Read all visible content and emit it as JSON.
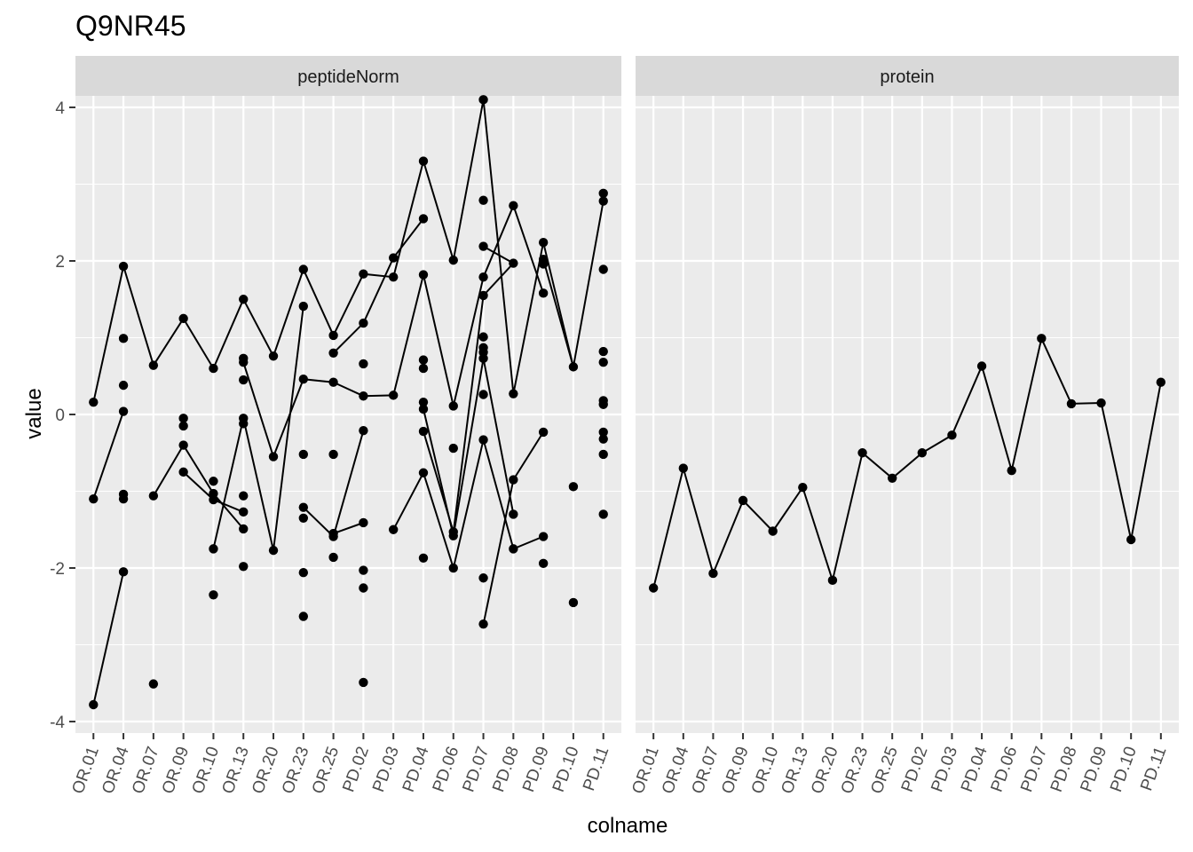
{
  "chart_data": {
    "type": "line",
    "title": "Q9NR45",
    "xlabel": "colname",
    "ylabel": "value",
    "ylim": [
      -4.15,
      4.15
    ],
    "yticks": [
      -4,
      -2,
      0,
      2,
      4
    ],
    "grid": true,
    "categories": [
      "OR.01",
      "OR.04",
      "OR.07",
      "OR.09",
      "OR.10",
      "OR.13",
      "OR.20",
      "OR.23",
      "OR.25",
      "PD.02",
      "PD.03",
      "PD.04",
      "PD.06",
      "PD.07",
      "PD.08",
      "PD.09",
      "PD.10",
      "PD.11"
    ],
    "facets": [
      {
        "name": "peptideNorm",
        "points": [
          {
            "x": "OR.01",
            "y": 0.16
          },
          {
            "x": "OR.01",
            "y": -1.1
          },
          {
            "x": "OR.01",
            "y": -3.78
          },
          {
            "x": "OR.04",
            "y": 1.93
          },
          {
            "x": "OR.04",
            "y": 0.99
          },
          {
            "x": "OR.04",
            "y": 0.38
          },
          {
            "x": "OR.04",
            "y": 0.04
          },
          {
            "x": "OR.04",
            "y": -1.04
          },
          {
            "x": "OR.04",
            "y": -1.1
          },
          {
            "x": "OR.04",
            "y": -2.05
          },
          {
            "x": "OR.07",
            "y": 0.64
          },
          {
            "x": "OR.07",
            "y": -1.06
          },
          {
            "x": "OR.07",
            "y": -3.51
          },
          {
            "x": "OR.09",
            "y": 1.25
          },
          {
            "x": "OR.09",
            "y": -0.05
          },
          {
            "x": "OR.09",
            "y": -0.15
          },
          {
            "x": "OR.09",
            "y": -0.4
          },
          {
            "x": "OR.09",
            "y": -0.75
          },
          {
            "x": "OR.10",
            "y": 0.6
          },
          {
            "x": "OR.10",
            "y": -0.87
          },
          {
            "x": "OR.10",
            "y": -1.03
          },
          {
            "x": "OR.10",
            "y": -1.11
          },
          {
            "x": "OR.10",
            "y": -1.75
          },
          {
            "x": "OR.10",
            "y": -2.35
          },
          {
            "x": "OR.13",
            "y": 1.5
          },
          {
            "x": "OR.13",
            "y": 0.73
          },
          {
            "x": "OR.13",
            "y": 0.68
          },
          {
            "x": "OR.13",
            "y": 0.45
          },
          {
            "x": "OR.13",
            "y": -0.05
          },
          {
            "x": "OR.13",
            "y": -0.12
          },
          {
            "x": "OR.13",
            "y": -1.06
          },
          {
            "x": "OR.13",
            "y": -1.27
          },
          {
            "x": "OR.13",
            "y": -1.49
          },
          {
            "x": "OR.13",
            "y": -1.98
          },
          {
            "x": "OR.20",
            "y": 0.76
          },
          {
            "x": "OR.20",
            "y": -0.55
          },
          {
            "x": "OR.20",
            "y": -1.77
          },
          {
            "x": "OR.23",
            "y": 1.89
          },
          {
            "x": "OR.23",
            "y": 1.41
          },
          {
            "x": "OR.23",
            "y": 0.46
          },
          {
            "x": "OR.23",
            "y": -0.52
          },
          {
            "x": "OR.23",
            "y": -1.21
          },
          {
            "x": "OR.23",
            "y": -1.35
          },
          {
            "x": "OR.23",
            "y": -2.06
          },
          {
            "x": "OR.23",
            "y": -2.63
          },
          {
            "x": "OR.25",
            "y": 1.03
          },
          {
            "x": "OR.25",
            "y": 0.8
          },
          {
            "x": "OR.25",
            "y": 0.42
          },
          {
            "x": "OR.25",
            "y": -0.52
          },
          {
            "x": "OR.25",
            "y": -1.55
          },
          {
            "x": "OR.25",
            "y": -1.59
          },
          {
            "x": "OR.25",
            "y": -1.86
          },
          {
            "x": "PD.02",
            "y": 1.83
          },
          {
            "x": "PD.02",
            "y": 1.19
          },
          {
            "x": "PD.02",
            "y": 0.66
          },
          {
            "x": "PD.02",
            "y": 0.24
          },
          {
            "x": "PD.02",
            "y": -0.21
          },
          {
            "x": "PD.02",
            "y": -1.41
          },
          {
            "x": "PD.02",
            "y": -2.03
          },
          {
            "x": "PD.02",
            "y": -2.26
          },
          {
            "x": "PD.02",
            "y": -3.49
          },
          {
            "x": "PD.03",
            "y": 2.04
          },
          {
            "x": "PD.03",
            "y": 1.79
          },
          {
            "x": "PD.03",
            "y": 0.25
          },
          {
            "x": "PD.03",
            "y": -1.5
          },
          {
            "x": "PD.04",
            "y": 3.3
          },
          {
            "x": "PD.04",
            "y": 2.55
          },
          {
            "x": "PD.04",
            "y": 1.82
          },
          {
            "x": "PD.04",
            "y": 0.71
          },
          {
            "x": "PD.04",
            "y": 0.6
          },
          {
            "x": "PD.04",
            "y": 0.16
          },
          {
            "x": "PD.04",
            "y": 0.07
          },
          {
            "x": "PD.04",
            "y": -0.22
          },
          {
            "x": "PD.04",
            "y": -0.76
          },
          {
            "x": "PD.04",
            "y": -1.87
          },
          {
            "x": "PD.06",
            "y": 2.01
          },
          {
            "x": "PD.06",
            "y": 0.11
          },
          {
            "x": "PD.06",
            "y": -0.44
          },
          {
            "x": "PD.06",
            "y": -1.53
          },
          {
            "x": "PD.06",
            "y": -1.58
          },
          {
            "x": "PD.06",
            "y": -2.0
          },
          {
            "x": "PD.07",
            "y": 4.1
          },
          {
            "x": "PD.07",
            "y": 2.79
          },
          {
            "x": "PD.07",
            "y": 2.19
          },
          {
            "x": "PD.07",
            "y": 1.79
          },
          {
            "x": "PD.07",
            "y": 1.55
          },
          {
            "x": "PD.07",
            "y": 1.01
          },
          {
            "x": "PD.07",
            "y": 0.87
          },
          {
            "x": "PD.07",
            "y": 0.81
          },
          {
            "x": "PD.07",
            "y": 0.73
          },
          {
            "x": "PD.07",
            "y": 0.26
          },
          {
            "x": "PD.07",
            "y": -0.33
          },
          {
            "x": "PD.07",
            "y": -2.13
          },
          {
            "x": "PD.07",
            "y": -2.73
          },
          {
            "x": "PD.08",
            "y": 2.72
          },
          {
            "x": "PD.08",
            "y": 1.97
          },
          {
            "x": "PD.08",
            "y": 0.27
          },
          {
            "x": "PD.08",
            "y": -0.85
          },
          {
            "x": "PD.08",
            "y": -1.3
          },
          {
            "x": "PD.08",
            "y": -1.75
          },
          {
            "x": "PD.09",
            "y": 2.24
          },
          {
            "x": "PD.09",
            "y": 2.02
          },
          {
            "x": "PD.09",
            "y": 1.96
          },
          {
            "x": "PD.09",
            "y": 1.58
          },
          {
            "x": "PD.09",
            "y": -0.23
          },
          {
            "x": "PD.09",
            "y": -1.59
          },
          {
            "x": "PD.09",
            "y": -1.94
          },
          {
            "x": "PD.10",
            "y": 0.62
          },
          {
            "x": "PD.10",
            "y": -0.94
          },
          {
            "x": "PD.10",
            "y": -2.45
          },
          {
            "x": "PD.11",
            "y": 2.88
          },
          {
            "x": "PD.11",
            "y": 2.78
          },
          {
            "x": "PD.11",
            "y": 1.89
          },
          {
            "x": "PD.11",
            "y": 0.82
          },
          {
            "x": "PD.11",
            "y": 0.68
          },
          {
            "x": "PD.11",
            "y": 0.18
          },
          {
            "x": "PD.11",
            "y": 0.13
          },
          {
            "x": "PD.11",
            "y": -0.23
          },
          {
            "x": "PD.11",
            "y": -0.32
          },
          {
            "x": "PD.11",
            "y": -0.52
          },
          {
            "x": "PD.11",
            "y": -1.3
          }
        ],
        "lines": [
          [
            [
              "OR.01",
              0.16
            ],
            [
              "OR.04",
              1.93
            ],
            [
              "OR.07",
              0.64
            ],
            [
              "OR.09",
              1.25
            ],
            [
              "OR.10",
              0.6
            ],
            [
              "OR.13",
              1.5
            ],
            [
              "OR.20",
              0.76
            ],
            [
              "OR.23",
              1.89
            ],
            [
              "OR.25",
              1.03
            ],
            [
              "PD.02",
              1.83
            ],
            [
              "PD.03",
              1.79
            ],
            [
              "PD.04",
              3.3
            ],
            [
              "PD.06",
              2.01
            ],
            [
              "PD.07",
              4.1
            ],
            [
              "PD.08",
              0.27
            ],
            [
              "PD.09",
              2.24
            ],
            [
              "PD.10",
              0.62
            ],
            [
              "PD.11",
              2.78
            ]
          ],
          [
            [
              "OR.01",
              -1.1
            ],
            [
              "OR.04",
              0.04
            ]
          ],
          [
            [
              "OR.01",
              -3.78
            ],
            [
              "OR.04",
              -2.05
            ]
          ],
          [
            [
              "OR.07",
              -1.06
            ],
            [
              "OR.09",
              -0.4
            ],
            [
              "OR.10",
              -1.03
            ],
            [
              "OR.13",
              -1.49
            ]
          ],
          [
            [
              "OR.09",
              -0.75
            ],
            [
              "OR.10",
              -1.11
            ],
            [
              "OR.13",
              -1.27
            ]
          ],
          [
            [
              "OR.10",
              -1.75
            ],
            [
              "OR.13",
              -0.05
            ],
            [
              "OR.20",
              -1.77
            ],
            [
              "OR.23",
              1.41
            ]
          ],
          [
            [
              "OR.13",
              0.68
            ],
            [
              "OR.20",
              -0.55
            ],
            [
              "OR.23",
              0.46
            ],
            [
              "OR.25",
              0.42
            ],
            [
              "PD.02",
              0.24
            ],
            [
              "PD.03",
              0.25
            ],
            [
              "PD.04",
              1.82
            ],
            [
              "PD.06",
              0.11
            ],
            [
              "PD.07",
              1.79
            ],
            [
              "PD.08",
              2.72
            ],
            [
              "PD.09",
              1.58
            ]
          ],
          [
            [
              "OR.23",
              -1.21
            ],
            [
              "OR.25",
              -1.59
            ],
            [
              "PD.02",
              -0.21
            ]
          ],
          [
            [
              "OR.25",
              -1.55
            ],
            [
              "PD.02",
              -1.41
            ]
          ],
          [
            [
              "OR.25",
              0.8
            ],
            [
              "PD.02",
              1.19
            ],
            [
              "PD.03",
              2.04
            ],
            [
              "PD.04",
              2.55
            ]
          ],
          [
            [
              "PD.03",
              -1.5
            ],
            [
              "PD.04",
              -0.76
            ],
            [
              "PD.06",
              -2.0
            ],
            [
              "PD.07",
              -0.33
            ],
            [
              "PD.08",
              -1.75
            ],
            [
              "PD.09",
              -1.59
            ]
          ],
          [
            [
              "PD.04",
              0.07
            ],
            [
              "PD.06",
              -1.58
            ],
            [
              "PD.07",
              0.73
            ],
            [
              "PD.08",
              -1.3
            ]
          ],
          [
            [
              "PD.04",
              -0.22
            ],
            [
              "PD.06",
              -1.53
            ],
            [
              "PD.07",
              1.55
            ],
            [
              "PD.08",
              1.97
            ]
          ],
          [
            [
              "PD.07",
              -2.73
            ],
            [
              "PD.08",
              -0.85
            ],
            [
              "PD.09",
              -0.23
            ]
          ],
          [
            [
              "PD.07",
              2.19
            ],
            [
              "PD.08",
              1.97
            ]
          ],
          [
            [
              "PD.09",
              2.02
            ],
            [
              "PD.10",
              0.62
            ]
          ]
        ]
      },
      {
        "name": "protein",
        "points": [
          {
            "x": "OR.01",
            "y": -2.26
          },
          {
            "x": "OR.04",
            "y": -0.7
          },
          {
            "x": "OR.07",
            "y": -2.07
          },
          {
            "x": "OR.09",
            "y": -1.12
          },
          {
            "x": "OR.10",
            "y": -1.52
          },
          {
            "x": "OR.13",
            "y": -0.95
          },
          {
            "x": "OR.20",
            "y": -2.16
          },
          {
            "x": "OR.23",
            "y": -0.5
          },
          {
            "x": "OR.25",
            "y": -0.83
          },
          {
            "x": "PD.02",
            "y": -0.5
          },
          {
            "x": "PD.03",
            "y": -0.27
          },
          {
            "x": "PD.04",
            "y": 0.63
          },
          {
            "x": "PD.06",
            "y": -0.73
          },
          {
            "x": "PD.07",
            "y": 0.99
          },
          {
            "x": "PD.08",
            "y": 0.14
          },
          {
            "x": "PD.09",
            "y": 0.15
          },
          {
            "x": "PD.10",
            "y": -1.63
          },
          {
            "x": "PD.11",
            "y": 0.42
          }
        ],
        "lines": [
          [
            [
              "OR.01",
              -2.26
            ],
            [
              "OR.04",
              -0.7
            ],
            [
              "OR.07",
              -2.07
            ],
            [
              "OR.09",
              -1.12
            ],
            [
              "OR.10",
              -1.52
            ],
            [
              "OR.13",
              -0.95
            ],
            [
              "OR.20",
              -2.16
            ],
            [
              "OR.23",
              -0.5
            ],
            [
              "OR.25",
              -0.83
            ],
            [
              "PD.02",
              -0.5
            ],
            [
              "PD.03",
              -0.27
            ],
            [
              "PD.04",
              0.63
            ],
            [
              "PD.06",
              -0.73
            ],
            [
              "PD.07",
              0.99
            ],
            [
              "PD.08",
              0.14
            ],
            [
              "PD.09",
              0.15
            ],
            [
              "PD.10",
              -1.63
            ],
            [
              "PD.11",
              0.42
            ]
          ]
        ]
      }
    ]
  }
}
